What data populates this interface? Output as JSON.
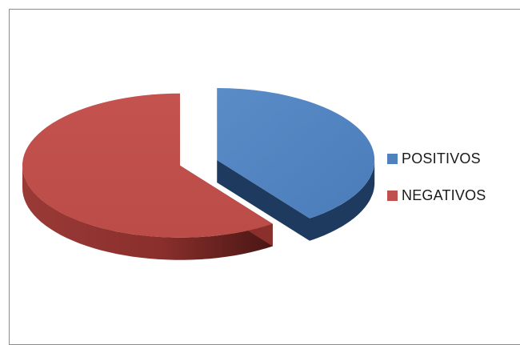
{
  "chart_data": {
    "type": "pie",
    "style": "3d-exploded",
    "categories": [
      "POSITIVOS",
      "NEGATIVOS"
    ],
    "values": [
      40,
      60
    ],
    "colors": [
      "#4f81bd",
      "#c0504d"
    ],
    "legend_position": "right"
  }
}
